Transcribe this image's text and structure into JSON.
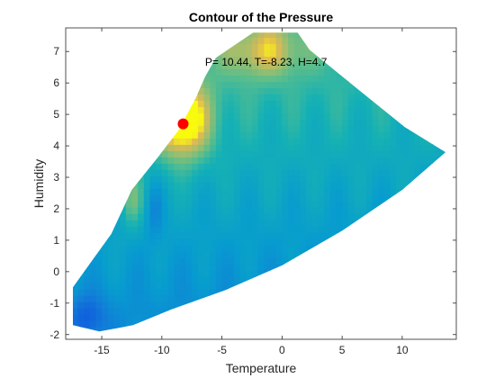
{
  "chart_data": {
    "type": "heatmap",
    "title": "Contour of the Pressure",
    "xlabel": "Temperature",
    "ylabel": "Humidity",
    "xlim": [
      -18,
      14.5
    ],
    "ylim": [
      -2.15,
      7.75
    ],
    "xticks": [
      -15,
      -10,
      -5,
      0,
      5,
      10
    ],
    "yticks": [
      -2,
      -1,
      0,
      1,
      2,
      3,
      4,
      5,
      6,
      7
    ],
    "colormap": "parula",
    "color_range": [
      0,
      10.5
    ],
    "domain_polygon": [
      [
        -17.4,
        -1.7
      ],
      [
        -15.2,
        -1.9
      ],
      [
        -12.4,
        -1.7
      ],
      [
        -9.2,
        -1.2
      ],
      [
        -4.8,
        -0.6
      ],
      [
        0.0,
        0.2
      ],
      [
        5.0,
        1.3
      ],
      [
        10.0,
        2.6
      ],
      [
        13.6,
        3.8
      ],
      [
        10.2,
        4.6
      ],
      [
        6.0,
        5.9
      ],
      [
        2.3,
        7.05
      ],
      [
        1.3,
        7.6
      ],
      [
        -2.4,
        7.6
      ],
      [
        -5.5,
        6.8
      ],
      [
        -6.4,
        6.2
      ],
      [
        -7.2,
        5.5
      ],
      [
        -8.6,
        4.5
      ],
      [
        -10.4,
        3.6
      ],
      [
        -12.5,
        2.6
      ],
      [
        -14.2,
        1.2
      ],
      [
        -15.9,
        0.3
      ],
      [
        -17.4,
        -0.5
      ]
    ],
    "marker": {
      "x": -8.23,
      "y": 4.7,
      "color": "#ff0000"
    },
    "annotation": {
      "text": "P= 10.44, T=-8.23, H=4.7",
      "x": -6.4,
      "y": 6.55
    },
    "colors": {
      "background": "#ffffff",
      "axes": "#262626",
      "marker": "#ff0000"
    }
  }
}
